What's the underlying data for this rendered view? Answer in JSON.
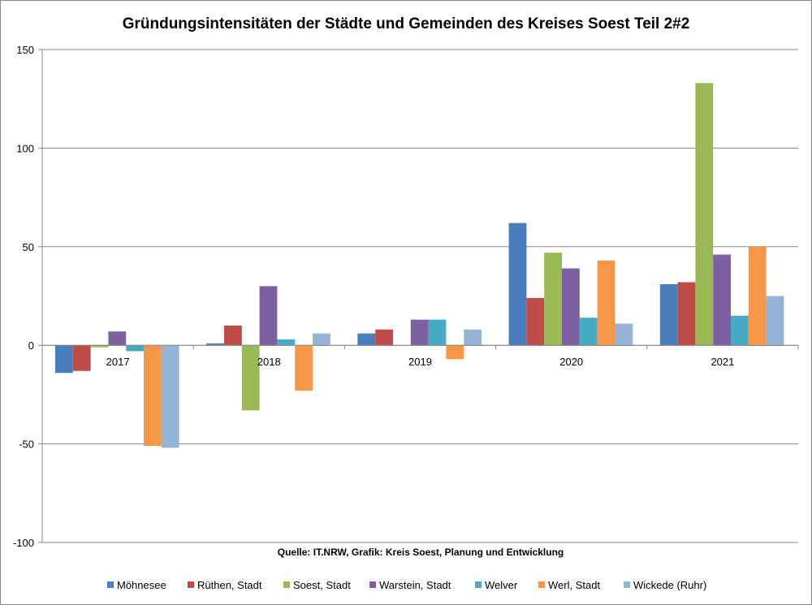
{
  "chart_data": {
    "type": "bar",
    "title": "Gründungsintensitäten der Städte und Gemeinden des Kreises Soest Teil 2#2",
    "xlabel": "",
    "ylabel": "",
    "ylim": [
      -100,
      150
    ],
    "yticks": [
      150,
      100,
      50,
      0,
      -50,
      -100
    ],
    "grid": true,
    "legend_position": "bottom",
    "source": "Quelle: IT.NRW, Grafik: Kreis Soest, Planung und Entwicklung",
    "categories": [
      "2017",
      "2018",
      "2019",
      "2020",
      "2021"
    ],
    "series": [
      {
        "name": "Möhnesee",
        "color": "#4a7ebb",
        "values": [
          -14,
          1,
          6,
          62,
          31
        ]
      },
      {
        "name": "Rüthen, Stadt",
        "color": "#be4b48",
        "values": [
          -13,
          10,
          8,
          24,
          32
        ]
      },
      {
        "name": "Soest, Stadt",
        "color": "#98b954",
        "values": [
          -1,
          -33,
          0,
          47,
          133
        ]
      },
      {
        "name": "Warstein, Stadt",
        "color": "#7d60a0",
        "values": [
          7,
          30,
          13,
          39,
          46
        ]
      },
      {
        "name": "Welver",
        "color": "#46aac5",
        "values": [
          -3,
          3,
          13,
          14,
          15
        ]
      },
      {
        "name": "Werl, Stadt",
        "color": "#f79646",
        "values": [
          -51,
          -23,
          -7,
          43,
          50
        ]
      },
      {
        "name": "Wickede (Ruhr)",
        "color": "#95b3d7",
        "values": [
          -52,
          6,
          8,
          11,
          25
        ]
      }
    ]
  }
}
